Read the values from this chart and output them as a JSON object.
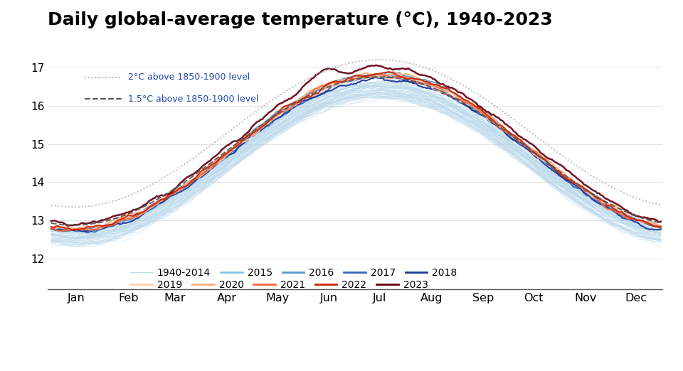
{
  "title": "Daily global-average temperature (°C), 1940-2023",
  "title_fontsize": 18,
  "title_fontweight": "bold",
  "months": [
    "Jan",
    "Feb",
    "Mar",
    "Apr",
    "May",
    "Jun",
    "Jul",
    "Aug",
    "Sep",
    "Oct",
    "Nov",
    "Dec"
  ],
  "ylim": [
    11.2,
    17.5
  ],
  "yticks": [
    12,
    13,
    14,
    15,
    16,
    17
  ],
  "background_color": "#ffffff",
  "legend_colors": {
    "1940-2014": "#b8d8ec",
    "2015": "#7ec8e3",
    "2016": "#5599cc",
    "2017": "#3366bb",
    "2018": "#1a3399",
    "2019": "#ffd0b0",
    "2020": "#ffaa77",
    "2021": "#ff6633",
    "2022": "#cc2200",
    "2023": "#660011"
  },
  "ref_2c_color": "#aaaaaa",
  "ref_15c_color": "#555555",
  "ref_2c_label": "2°C above 1850-1900 level",
  "ref_15c_label": "1.5°C above 1850-1900 level",
  "label_color": "#2244aa",
  "base_min": 12.7,
  "base_max": 16.55,
  "base_peak_day": 196,
  "ref_2c_peak": 17.2,
  "ref_2c_base": 13.35,
  "ref_15c_peak": 16.75,
  "ref_15c_base": 12.88
}
